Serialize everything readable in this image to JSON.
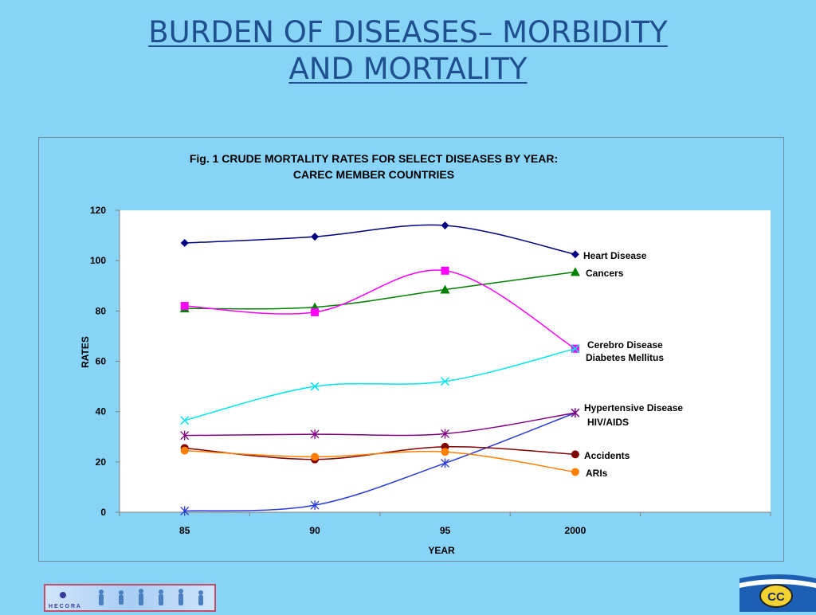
{
  "slide": {
    "title_line1": "BURDEN OF DISEASES– MORBIDITY",
    "title_line2": "AND MORTALITY"
  },
  "colors": {
    "background": "#87d4f7",
    "title": "#1f4f8f",
    "plot_area": "#ffffff"
  },
  "logos": {
    "left": "hecora-logo-icon",
    "right": "carec-logo-icon"
  },
  "chart_data": {
    "type": "line",
    "title_line1": "Fig. 1 CRUDE MORTALITY RATES FOR SELECT DISEASES BY YEAR:",
    "title_line2": "CAREC MEMBER COUNTRIES",
    "xlabel": "YEAR",
    "ylabel": "RATES",
    "categories": [
      "85",
      "90",
      "95",
      "2000"
    ],
    "ylim": [
      0,
      120
    ],
    "yticks": [
      0,
      20,
      40,
      60,
      80,
      100,
      120
    ],
    "grid": false,
    "legend": "inline-right-of-last-point",
    "series": [
      {
        "name": "Heart Disease",
        "values": [
          107,
          109.5,
          114,
          102.5
        ],
        "color": "#000080",
        "marker": "diamond"
      },
      {
        "name": "Cancers",
        "values": [
          81,
          81.5,
          88.5,
          95.5
        ],
        "color": "#008000",
        "marker": "triangle"
      },
      {
        "name": "Cerebro Disease",
        "values": [
          82,
          79.5,
          96,
          65
        ],
        "color": "#ff00ff",
        "marker": "square"
      },
      {
        "name": "Diabetes Mellitus",
        "values": [
          36.5,
          50,
          52,
          65
        ],
        "color": "#00e5ee",
        "marker": "x"
      },
      {
        "name": "Hypertensive Disease",
        "values": [
          0.5,
          2.8,
          19.5,
          39.5
        ],
        "color": "#2b3bd9",
        "marker": "star"
      },
      {
        "name": "HIV/AIDS",
        "values": [
          30.5,
          31,
          31.2,
          39.5
        ],
        "color": "#800080",
        "marker": "star"
      },
      {
        "name": "Accidents",
        "values": [
          25.5,
          21,
          26,
          23
        ],
        "color": "#800000",
        "marker": "circle"
      },
      {
        "name": "ARIs",
        "values": [
          24.5,
          22,
          24,
          16
        ],
        "color": "#ff7f00",
        "marker": "circle"
      }
    ]
  }
}
